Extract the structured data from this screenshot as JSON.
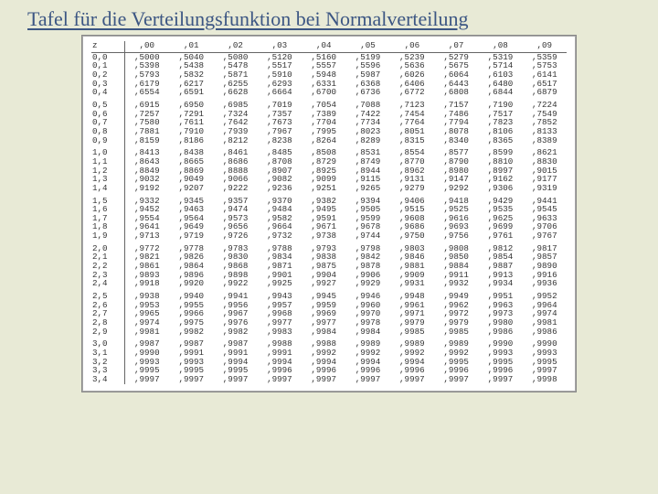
{
  "title": "Tafel für die Verteilungsfunktion bei Normalverteilung",
  "table": {
    "header_label": "z",
    "columns": [
      ",00",
      ",01",
      ",02",
      ",03",
      ",04",
      ",05",
      ",06",
      ",07",
      ",08",
      ",09"
    ],
    "rows": [
      {
        "z": "0,0",
        "v": [
          ",5000",
          ",5040",
          ",5080",
          ",5120",
          ",5160",
          ",5199",
          ",5239",
          ",5279",
          ",5319",
          ",5359"
        ]
      },
      {
        "z": "0,1",
        "v": [
          ",5398",
          ",5438",
          ",5478",
          ",5517",
          ",5557",
          ",5596",
          ",5636",
          ",5675",
          ",5714",
          ",5753"
        ]
      },
      {
        "z": "0,2",
        "v": [
          ",5793",
          ",5832",
          ",5871",
          ",5910",
          ",5948",
          ",5987",
          ",6026",
          ",6064",
          ",6103",
          ",6141"
        ]
      },
      {
        "z": "0,3",
        "v": [
          ",6179",
          ",6217",
          ",6255",
          ",6293",
          ",6331",
          ",6368",
          ",6406",
          ",6443",
          ",6480",
          ",6517"
        ]
      },
      {
        "z": "0,4",
        "v": [
          ",6554",
          ",6591",
          ",6628",
          ",6664",
          ",6700",
          ",6736",
          ",6772",
          ",6808",
          ",6844",
          ",6879"
        ]
      },
      {
        "z": "0,5",
        "v": [
          ",6915",
          ",6950",
          ",6985",
          ",7019",
          ",7054",
          ",7088",
          ",7123",
          ",7157",
          ",7190",
          ",7224"
        ]
      },
      {
        "z": "0,6",
        "v": [
          ",7257",
          ",7291",
          ",7324",
          ",7357",
          ",7389",
          ",7422",
          ",7454",
          ",7486",
          ",7517",
          ",7549"
        ]
      },
      {
        "z": "0,7",
        "v": [
          ",7580",
          ",7611",
          ",7642",
          ",7673",
          ",7704",
          ",7734",
          ",7764",
          ",7794",
          ",7823",
          ",7852"
        ]
      },
      {
        "z": "0,8",
        "v": [
          ",7881",
          ",7910",
          ",7939",
          ",7967",
          ",7995",
          ",8023",
          ",8051",
          ",8078",
          ",8106",
          ",8133"
        ]
      },
      {
        "z": "0,9",
        "v": [
          ",8159",
          ",8186",
          ",8212",
          ",8238",
          ",8264",
          ",8289",
          ",8315",
          ",8340",
          ",8365",
          ",8389"
        ]
      },
      {
        "z": "1,0",
        "v": [
          ",8413",
          ",8438",
          ",8461",
          ",8485",
          ",8508",
          ",8531",
          ",8554",
          ",8577",
          ",8599",
          ",8621"
        ]
      },
      {
        "z": "1,1",
        "v": [
          ",8643",
          ",8665",
          ",8686",
          ",8708",
          ",8729",
          ",8749",
          ",8770",
          ",8790",
          ",8810",
          ",8830"
        ]
      },
      {
        "z": "1,2",
        "v": [
          ",8849",
          ",8869",
          ",8888",
          ",8907",
          ",8925",
          ",8944",
          ",8962",
          ",8980",
          ",8997",
          ",9015"
        ]
      },
      {
        "z": "1,3",
        "v": [
          ",9032",
          ",9049",
          ",9066",
          ",9082",
          ",9099",
          ",9115",
          ",9131",
          ",9147",
          ",9162",
          ",9177"
        ]
      },
      {
        "z": "1,4",
        "v": [
          ",9192",
          ",9207",
          ",9222",
          ",9236",
          ",9251",
          ",9265",
          ",9279",
          ",9292",
          ",9306",
          ",9319"
        ]
      },
      {
        "z": "1,5",
        "v": [
          ",9332",
          ",9345",
          ",9357",
          ",9370",
          ",9382",
          ",9394",
          ",9406",
          ",9418",
          ",9429",
          ",9441"
        ]
      },
      {
        "z": "1,6",
        "v": [
          ",9452",
          ",9463",
          ",9474",
          ",9484",
          ",9495",
          ",9505",
          ",9515",
          ",9525",
          ",9535",
          ",9545"
        ]
      },
      {
        "z": "1,7",
        "v": [
          ",9554",
          ",9564",
          ",9573",
          ",9582",
          ",9591",
          ",9599",
          ",9608",
          ",9616",
          ",9625",
          ",9633"
        ]
      },
      {
        "z": "1,8",
        "v": [
          ",9641",
          ",9649",
          ",9656",
          ",9664",
          ",9671",
          ",9678",
          ",9686",
          ",9693",
          ",9699",
          ",9706"
        ]
      },
      {
        "z": "1,9",
        "v": [
          ",9713",
          ",9719",
          ",9726",
          ",9732",
          ",9738",
          ",9744",
          ",9750",
          ",9756",
          ",9761",
          ",9767"
        ]
      },
      {
        "z": "2,0",
        "v": [
          ",9772",
          ",9778",
          ",9783",
          ",9788",
          ",9793",
          ",9798",
          ",9803",
          ",9808",
          ",9812",
          ",9817"
        ]
      },
      {
        "z": "2,1",
        "v": [
          ",9821",
          ",9826",
          ",9830",
          ",9834",
          ",9838",
          ",9842",
          ",9846",
          ",9850",
          ",9854",
          ",9857"
        ]
      },
      {
        "z": "2,2",
        "v": [
          ",9861",
          ",9864",
          ",9868",
          ",9871",
          ",9875",
          ",9878",
          ",9881",
          ",9884",
          ",9887",
          ",9890"
        ]
      },
      {
        "z": "2,3",
        "v": [
          ",9893",
          ",9896",
          ",9898",
          ",9901",
          ",9904",
          ",9906",
          ",9909",
          ",9911",
          ",9913",
          ",9916"
        ]
      },
      {
        "z": "2,4",
        "v": [
          ",9918",
          ",9920",
          ",9922",
          ",9925",
          ",9927",
          ",9929",
          ",9931",
          ",9932",
          ",9934",
          ",9936"
        ]
      },
      {
        "z": "2,5",
        "v": [
          ",9938",
          ",9940",
          ",9941",
          ",9943",
          ",9945",
          ",9946",
          ",9948",
          ",9949",
          ",9951",
          ",9952"
        ]
      },
      {
        "z": "2,6",
        "v": [
          ",9953",
          ",9955",
          ",9956",
          ",9957",
          ",9959",
          ",9960",
          ",9961",
          ",9962",
          ",9963",
          ",9964"
        ]
      },
      {
        "z": "2,7",
        "v": [
          ",9965",
          ",9966",
          ",9967",
          ",9968",
          ",9969",
          ",9970",
          ",9971",
          ",9972",
          ",9973",
          ",9974"
        ]
      },
      {
        "z": "2,8",
        "v": [
          ",9974",
          ",9975",
          ",9976",
          ",9977",
          ",9977",
          ",9978",
          ",9979",
          ",9979",
          ",9980",
          ",9981"
        ]
      },
      {
        "z": "2,9",
        "v": [
          ",9981",
          ",9982",
          ",9982",
          ",9983",
          ",9984",
          ",9984",
          ",9985",
          ",9985",
          ",9986",
          ",9986"
        ]
      },
      {
        "z": "3,0",
        "v": [
          ",9987",
          ",9987",
          ",9987",
          ",9988",
          ",9988",
          ",9989",
          ",9989",
          ",9989",
          ",9990",
          ",9990"
        ]
      },
      {
        "z": "3,1",
        "v": [
          ",9990",
          ",9991",
          ",9991",
          ",9991",
          ",9992",
          ",9992",
          ",9992",
          ",9992",
          ",9993",
          ",9993"
        ]
      },
      {
        "z": "3,2",
        "v": [
          ",9993",
          ",9993",
          ",9994",
          ",9994",
          ",9994",
          ",9994",
          ",9994",
          ",9995",
          ",9995",
          ",9995"
        ]
      },
      {
        "z": "3,3",
        "v": [
          ",9995",
          ",9995",
          ",9995",
          ",9996",
          ",9996",
          ",9996",
          ",9996",
          ",9996",
          ",9996",
          ",9997"
        ]
      },
      {
        "z": "3,4",
        "v": [
          ",9997",
          ",9997",
          ",9997",
          ",9997",
          ",9997",
          ",9997",
          ",9997",
          ",9997",
          ",9997",
          ",9998"
        ]
      }
    ],
    "group_breaks": [
      5,
      10,
      15,
      20,
      25,
      30
    ]
  },
  "colors": {
    "page_bg": "#e8ead6",
    "title_color": "#3c5683",
    "table_bg": "#ffffff",
    "text_color": "#333333",
    "rule_color": "#666666"
  }
}
